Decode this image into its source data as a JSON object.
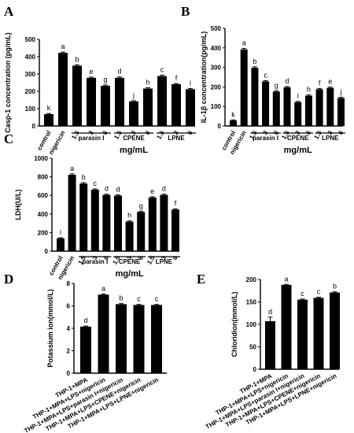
{
  "chart_data": [
    {
      "panel_label": "A",
      "type": "bar",
      "categories": [
        "control",
        "nigericin",
        "1.5",
        "3",
        "6",
        "1.5",
        "3",
        "6",
        "1.5",
        "3",
        "6"
      ],
      "values": [
        68,
        422,
        348,
        278,
        232,
        278,
        142,
        216,
        288,
        241,
        212
      ],
      "errors": [
        4,
        5,
        5,
        4,
        5,
        5,
        4,
        5,
        5,
        4,
        4
      ],
      "letters": [
        "k",
        "a",
        "b",
        "e",
        "g",
        "d",
        "j",
        "h",
        "c",
        "f",
        "i"
      ],
      "groups": [
        "parasin I",
        "CPENE",
        "LPNE"
      ],
      "xlabel": "mg/mL",
      "ylabel": "Casp-1 concentration (pg/mL)",
      "ylim": [
        0,
        500
      ],
      "yticks": [
        0,
        100,
        200,
        300,
        400,
        500
      ]
    },
    {
      "panel_label": "B",
      "type": "bar",
      "categories": [
        "control",
        "nigericin",
        "1.5",
        "3",
        "6",
        "1.5",
        "3",
        "6",
        "1.5",
        "3",
        "6"
      ],
      "values": [
        28,
        392,
        298,
        228,
        176,
        198,
        122,
        155,
        188,
        195,
        143
      ],
      "errors": [
        3,
        5,
        5,
        4,
        4,
        4,
        4,
        4,
        4,
        4,
        4
      ],
      "letters": [
        "k",
        "a",
        "b",
        "c",
        "g",
        "d",
        "i",
        "h",
        "f",
        "e",
        "j"
      ],
      "groups": [
        "parasin I",
        "CPENE",
        "LPNE"
      ],
      "xlabel": "mg/mL",
      "ylabel": "IL-1β concentration(pg/mL)",
      "ylim": [
        0,
        500
      ],
      "yticks": [
        0,
        100,
        200,
        300,
        400,
        500
      ]
    },
    {
      "panel_label": "C",
      "type": "bar",
      "categories": [
        "control",
        "nigericin",
        "1.5",
        "3",
        "6",
        "1.5",
        "3",
        "6",
        "1.5",
        "3",
        "6"
      ],
      "values": [
        138,
        822,
        728,
        662,
        605,
        598,
        318,
        422,
        578,
        605,
        448
      ],
      "errors": [
        6,
        10,
        10,
        8,
        8,
        8,
        8,
        8,
        8,
        8,
        8
      ],
      "letters": [
        "i",
        "a",
        "b",
        "c",
        "d",
        "d",
        "h",
        "g",
        "e",
        "d",
        "f"
      ],
      "groups": [
        "parasin I",
        "CPENE",
        "LPNE"
      ],
      "xlabel": "mg/mL",
      "ylabel": "LDH(U/L)",
      "ylim": [
        0,
        1000
      ],
      "yticks": [
        0,
        200,
        400,
        600,
        800,
        1000
      ]
    },
    {
      "panel_label": "D",
      "type": "bar",
      "categories": [
        "THP-1+MPA",
        "THP-1+MPA+LPS+nigericin",
        "THP-1+MPA+LPS+parasin I+nigericin",
        "THP-1+MPA+LPS+CPENE+nigericin",
        "THP-1+MPA+LPS+LPNE+nigericin"
      ],
      "values": [
        4.15,
        7.0,
        6.15,
        6.08,
        6.08
      ],
      "errors": [
        0.05,
        0.05,
        0.05,
        0.05,
        0.05
      ],
      "letters": [
        "d",
        "a",
        "b",
        "c",
        "c"
      ],
      "ylabel": "Potassium ion(mmol/L)",
      "ylim": [
        0,
        8
      ],
      "yticks": [
        0,
        2,
        4,
        6,
        8
      ]
    },
    {
      "panel_label": "E",
      "type": "bar",
      "categories": [
        "THP-1+MPA",
        "THP-1+MPA+LPS+nigericin",
        "THP-1+MPA+LPS+parasin I+nigericin",
        "THP-1+MPA+LPS+CPENE+nigericin",
        "THP-1+MPA+LPS+LPNE+nigericin"
      ],
      "values": [
        107,
        188,
        155,
        159,
        171
      ],
      "errors": [
        9,
        1,
        1.5,
        1.5,
        1.5
      ],
      "letters": [
        "d",
        "a",
        "c",
        "c",
        "b"
      ],
      "ylabel": "Chloridion(mmol/L)",
      "ylim": [
        0,
        200
      ],
      "yticks": [
        0,
        50,
        100,
        150,
        200
      ]
    }
  ]
}
